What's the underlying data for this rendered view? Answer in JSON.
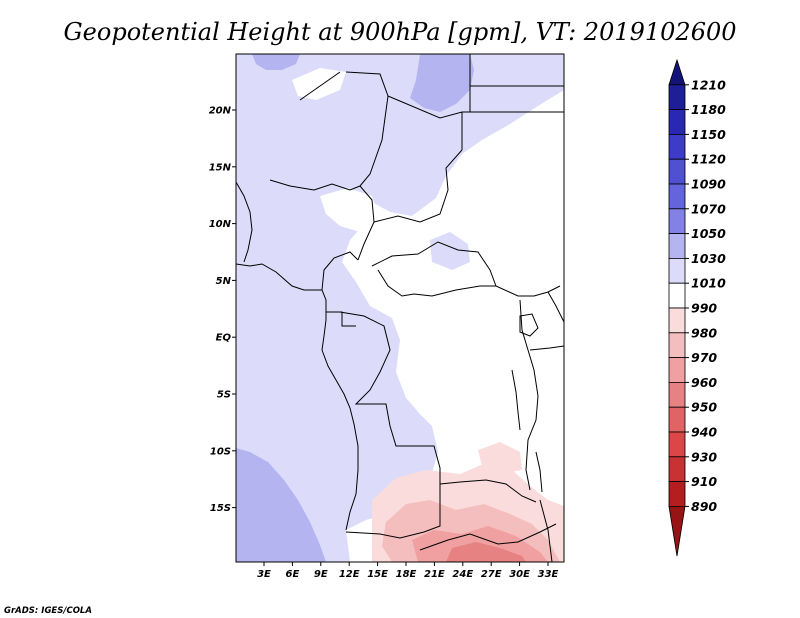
{
  "title": "Geopotential Height at 900hPa [gpm], VT: 2019102600",
  "credit": "GrADS: IGES/COLA",
  "map": {
    "lon_labels": [
      "3E",
      "6E",
      "9E",
      "12E",
      "15E",
      "18E",
      "21E",
      "24E",
      "27E",
      "30E",
      "33E"
    ],
    "lat_labels": [
      "20N",
      "15N",
      "10N",
      "5N",
      "EQ",
      "5S",
      "10S",
      "15S"
    ],
    "region_colors": {
      "ocean_1050": "#b4b4f0",
      "band_1030": "#dcdcfa",
      "band_1010": "#ffffff",
      "band_990": "#fadcdc",
      "band_980": "#f5bebe",
      "band_970": "#f0a0a0",
      "band_960": "#e68282"
    }
  },
  "colorbar": {
    "levels": [
      "1210",
      "1180",
      "1150",
      "1120",
      "1090",
      "1070",
      "1050",
      "1030",
      "1010",
      "990",
      "980",
      "970",
      "960",
      "950",
      "940",
      "930",
      "910",
      "890"
    ],
    "colors": [
      "#141478",
      "#1e1e96",
      "#2828b4",
      "#3c3cc8",
      "#5050d2",
      "#6464dc",
      "#8282e6",
      "#b4b4f0",
      "#dcdcfa",
      "#ffffff",
      "#fadcdc",
      "#f5bebe",
      "#f0a0a0",
      "#e68282",
      "#e16464",
      "#dc4646",
      "#c83232",
      "#b41e1e",
      "#961414"
    ]
  }
}
